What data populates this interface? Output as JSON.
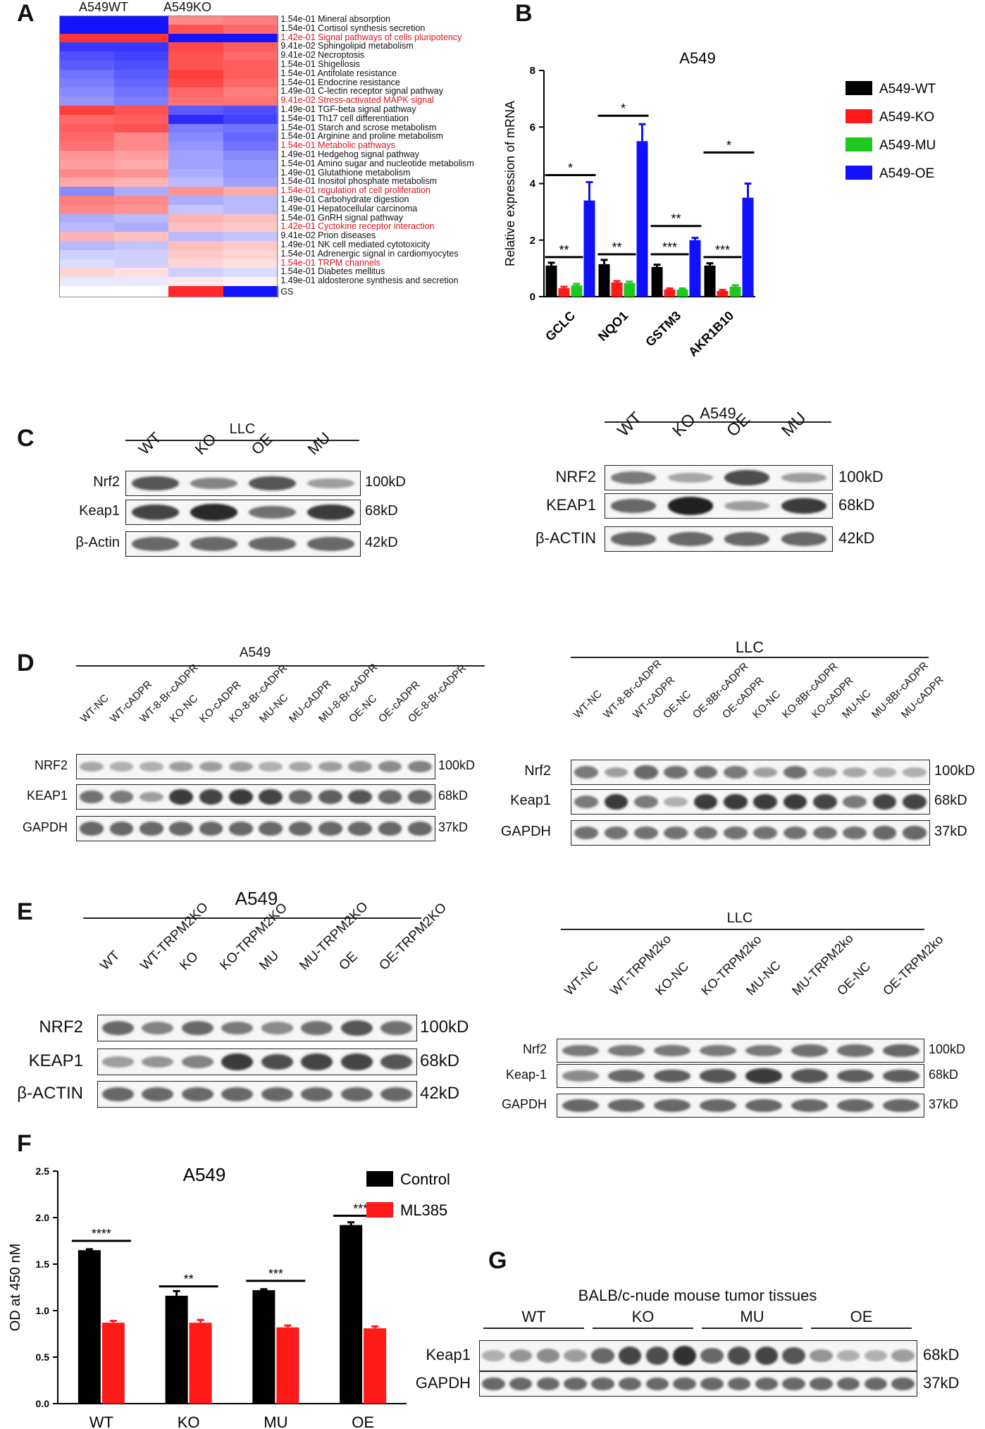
{
  "panels": {
    "A": "A",
    "B": "B",
    "C": "C",
    "D": "D",
    "E": "E",
    "F": "F",
    "G": "G"
  },
  "heatmap": {
    "col_groups": [
      "A549WT",
      "A549KO"
    ],
    "rows": [
      {
        "label": "1.54e-01 Mineral absorption",
        "red": false,
        "vals": [
          -1,
          -1,
          0.55,
          0.6
        ]
      },
      {
        "label": "1.54e-01 Cortisol synthesis secretion",
        "red": false,
        "vals": [
          -1,
          -1,
          0.8,
          0.7
        ]
      },
      {
        "label": "1.42e-01 Signal pathways of cells pluripotency",
        "red": true,
        "vals": [
          0.95,
          0.95,
          -1,
          -1
        ]
      },
      {
        "label": "9.41e-02 Sphingolipid metabolism",
        "red": false,
        "vals": [
          -0.85,
          -0.85,
          0.85,
          0.75
        ]
      },
      {
        "label": "9.41e-02 Necroptosis",
        "red": false,
        "vals": [
          -0.75,
          -0.8,
          0.8,
          0.7
        ]
      },
      {
        "label": "1.54e-01 Shigellosis",
        "red": false,
        "vals": [
          -0.7,
          -0.75,
          0.8,
          0.75
        ]
      },
      {
        "label": "1.54e-01 Antifolate resistance",
        "red": false,
        "vals": [
          -0.6,
          -0.7,
          0.9,
          0.75
        ]
      },
      {
        "label": "1.54e-01 Endocrine resistance",
        "red": false,
        "vals": [
          -0.55,
          -0.65,
          0.85,
          0.7
        ]
      },
      {
        "label": "1.49e-01 C-lectin receptor signal pathway",
        "red": false,
        "vals": [
          -0.5,
          -0.6,
          0.7,
          0.6
        ]
      },
      {
        "label": "9.41e-02 Stress-activated MAPK signal",
        "red": true,
        "vals": [
          -0.45,
          -0.55,
          0.65,
          0.65
        ]
      },
      {
        "label": "1.49e-01 TGF-beta signal pathway",
        "red": false,
        "vals": [
          0.9,
          0.8,
          -0.7,
          -0.75
        ]
      },
      {
        "label": "1.54e-01 Th17 cell differentiation",
        "red": false,
        "vals": [
          0.7,
          0.75,
          -0.9,
          -0.8
        ]
      },
      {
        "label": "1.54e-01 Starch and scrose metabolism",
        "red": false,
        "vals": [
          0.75,
          0.8,
          -0.55,
          -0.6
        ]
      },
      {
        "label": "1.54e-01 Arginine and proline metabolism",
        "red": false,
        "vals": [
          0.7,
          0.55,
          -0.5,
          -0.65
        ]
      },
      {
        "label": "1.54e-01 Metabolic pathways",
        "red": true,
        "vals": [
          0.65,
          0.55,
          -0.45,
          -0.6
        ]
      },
      {
        "label": "1.49e-01 Hedgehog signal pathway",
        "red": false,
        "vals": [
          0.5,
          0.45,
          -0.4,
          -0.5
        ]
      },
      {
        "label": "1.54e-01 Amino sugar and nucleotide metabolism",
        "red": false,
        "vals": [
          0.45,
          0.4,
          -0.4,
          -0.45
        ]
      },
      {
        "label": "1.49e-01 Glutathione metabolism",
        "red": false,
        "vals": [
          0.55,
          0.5,
          -0.35,
          -0.45
        ]
      },
      {
        "label": "1.54e-01 Inositol phosphate metabolism",
        "red": false,
        "vals": [
          0.4,
          0.35,
          -0.3,
          -0.4
        ]
      },
      {
        "label": "1.54e-01 regulation of cell proliferation",
        "red": true,
        "vals": [
          -0.5,
          -0.35,
          0.5,
          0.4
        ]
      },
      {
        "label": "1.49e-01 Carbohydrate digestion",
        "red": false,
        "vals": [
          0.6,
          0.55,
          -0.35,
          -0.3
        ]
      },
      {
        "label": "1.49e-01 Hepatocellular carcinoma",
        "red": false,
        "vals": [
          0.55,
          0.5,
          -0.25,
          -0.3
        ]
      },
      {
        "label": "1.54e-01 GnRH signal pathway",
        "red": false,
        "vals": [
          -0.35,
          -0.3,
          0.35,
          0.3
        ]
      },
      {
        "label": "1.42e-01 Cyctokine receptor interaction",
        "red": true,
        "vals": [
          -0.3,
          -0.35,
          0.3,
          0.25
        ]
      },
      {
        "label": "9.41e-02 Prion diseases",
        "red": false,
        "vals": [
          0.35,
          0.3,
          -0.3,
          -0.25
        ]
      },
      {
        "label": "1.49e-01 NK cell mediated cytotoxicity",
        "red": false,
        "vals": [
          -0.3,
          -0.25,
          0.3,
          0.25
        ]
      },
      {
        "label": "1.54e-01 Adrenergic signal in cardiomyocytes",
        "red": false,
        "vals": [
          -0.2,
          -0.2,
          0.25,
          0.2
        ]
      },
      {
        "label": "1.54e-01 TRPM channels",
        "red": true,
        "vals": [
          -0.15,
          -0.2,
          0.2,
          0.15
        ]
      },
      {
        "label": "1.54e-01 Diabetes mellitus",
        "red": false,
        "vals": [
          0.2,
          0.15,
          -0.2,
          -0.15
        ]
      },
      {
        "label": "1.49e-01 aldosterone synthesis and secretion",
        "red": false,
        "vals": [
          -0.1,
          -0.1,
          0.1,
          0.05
        ]
      }
    ],
    "gs_label": "GS",
    "gs_vals": [
      0,
      0,
      1,
      -1
    ]
  },
  "panelB": {
    "chart_data": {
      "type": "bar",
      "title": "A549",
      "ylabel": "Relative expression of mRNA",
      "ylim": [
        0,
        8
      ],
      "yticks": [
        0,
        2,
        4,
        6,
        8
      ],
      "categories": [
        "GCLC",
        "NQO1",
        "GSTM3",
        "AKR1B10"
      ],
      "series": [
        {
          "name": "A549-WT",
          "color": "#000000",
          "values": [
            1.1,
            1.15,
            1.05,
            1.1
          ],
          "err": [
            0.1,
            0.15,
            0.08,
            0.08
          ]
        },
        {
          "name": "A549-KO",
          "color": "#ff1a1a",
          "values": [
            0.3,
            0.5,
            0.25,
            0.2
          ],
          "err": [
            0.05,
            0.05,
            0.04,
            0.04
          ]
        },
        {
          "name": "A549-MU",
          "color": "#1ec81e",
          "values": [
            0.4,
            0.48,
            0.25,
            0.35
          ],
          "err": [
            0.05,
            0.05,
            0.04,
            0.05
          ]
        },
        {
          "name": "A549-OE",
          "color": "#1010ff",
          "values": [
            3.4,
            5.5,
            2.0,
            3.5
          ],
          "err": [
            0.65,
            0.6,
            0.08,
            0.5
          ]
        }
      ],
      "significance": [
        {
          "label": "**",
          "cat": 0,
          "y": 1.4
        },
        {
          "label": "*",
          "cat": 0,
          "y": 4.3
        },
        {
          "label": "**",
          "cat": 1,
          "y": 1.5
        },
        {
          "label": "*",
          "cat": 1,
          "y": 6.4
        },
        {
          "label": "***",
          "cat": 2,
          "y": 1.5
        },
        {
          "label": "**",
          "cat": 2,
          "y": 2.5
        },
        {
          "label": "***",
          "cat": 3,
          "y": 1.4
        },
        {
          "label": "*",
          "cat": 3,
          "y": 5.1
        }
      ]
    }
  },
  "panelC": {
    "left": {
      "group": "LLC",
      "lanes": [
        "WT",
        "KO",
        "OE",
        "MU"
      ],
      "rows": [
        {
          "label": "Nrf2",
          "kd": "100kD"
        },
        {
          "label": "Keap1",
          "kd": "68kD"
        },
        {
          "label": "β-Actin",
          "kd": "42kD"
        }
      ]
    },
    "right": {
      "group": "A549",
      "lanes": [
        "WT",
        "KO",
        "OE",
        "MU"
      ],
      "rows": [
        {
          "label": "NRF2",
          "kd": "100kD"
        },
        {
          "label": "KEAP1",
          "kd": "68kD"
        },
        {
          "label": "β-ACTIN",
          "kd": "42kD"
        }
      ]
    }
  },
  "panelD": {
    "left": {
      "group": "A549",
      "lanes": [
        "WT-NC",
        "WT-cADPR",
        "WT-8-Br-cADPR",
        "KO-NC",
        "KO-cADPR",
        "KO-8-Br-cADPR",
        "MU-NC",
        "MU-cADPR",
        "MU-8-Br-cADPR",
        "OE-NC",
        "OE-cADPR",
        "OE-8-Br-cADPR"
      ],
      "rows": [
        {
          "label": "NRF2",
          "kd": "100kD"
        },
        {
          "label": "KEAP1",
          "kd": "68kD"
        },
        {
          "label": "GAPDH",
          "kd": "37kD"
        }
      ]
    },
    "right": {
      "group": "LLC",
      "lanes": [
        "WT-NC",
        "WT-8-Br-cADPR",
        "WT-cADPR",
        "OE-NC",
        "OE-8Br-cADPR",
        "OE-cADPR",
        "KO-NC",
        "KO-8Br-cADPR",
        "KO-cADPR",
        "MU-NC",
        "MU-8Br-cADPR",
        "MU-cADPR"
      ],
      "rows": [
        {
          "label": "Nrf2",
          "kd": "100kD"
        },
        {
          "label": "Keap1",
          "kd": "68kD"
        },
        {
          "label": "GAPDH",
          "kd": "37kD"
        }
      ]
    }
  },
  "panelE": {
    "left": {
      "group": "A549",
      "lanes": [
        "WT",
        "WT-TRPM2KO",
        "KO",
        "KO-TRPM2KO",
        "MU",
        "MU-TRPM2KO",
        "OE",
        "OE-TRPM2KO"
      ],
      "rows": [
        {
          "label": "NRF2",
          "kd": "100kD"
        },
        {
          "label": "KEAP1",
          "kd": "68kD"
        },
        {
          "label": "β-ACTIN",
          "kd": "42kD"
        }
      ]
    },
    "right": {
      "group": "LLC",
      "lanes": [
        "WT-NC",
        "WT-TRPM2ko",
        "KO-NC",
        "KO-TRPM2ko",
        "MU-NC",
        "MU-TRPM2ko",
        "OE-NC",
        "OE-TRPM2ko"
      ],
      "rows": [
        {
          "label": "Nrf2",
          "kd": "100kD"
        },
        {
          "label": "Keap-1",
          "kd": "68kD"
        },
        {
          "label": "GAPDH",
          "kd": "37kD"
        }
      ]
    }
  },
  "panelF": {
    "chart_data": {
      "type": "bar",
      "title": "A549",
      "ylabel": "OD at 450 nM",
      "ylim": [
        0,
        2.5
      ],
      "yticks": [
        0.0,
        0.5,
        1.0,
        1.5,
        2.0,
        2.5
      ],
      "categories": [
        "WT",
        "KO",
        "MU",
        "OE"
      ],
      "series": [
        {
          "name": "Control",
          "color": "#000000",
          "values": [
            1.65,
            1.16,
            1.22,
            1.92
          ],
          "err": [
            0.01,
            0.05,
            0.01,
            0.03
          ]
        },
        {
          "name": "ML385",
          "color": "#ff1a1a",
          "values": [
            0.87,
            0.87,
            0.82,
            0.81
          ],
          "err": [
            0.02,
            0.03,
            0.02,
            0.02
          ]
        }
      ],
      "significance": [
        {
          "label": "****",
          "cat": 0,
          "y": 1.75
        },
        {
          "label": "**",
          "cat": 1,
          "y": 1.26
        },
        {
          "label": "***",
          "cat": 2,
          "y": 1.32
        },
        {
          "label": "****",
          "cat": 3,
          "y": 2.02
        }
      ]
    }
  },
  "panelG": {
    "title": "BALB/c-nude mouse tumor tissues",
    "groups": [
      "WT",
      "KO",
      "MU",
      "OE"
    ],
    "rows": [
      {
        "label": "Keap1",
        "kd": "68kD"
      },
      {
        "label": "GAPDH",
        "kd": "37kD"
      }
    ]
  }
}
